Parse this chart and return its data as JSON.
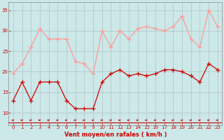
{
  "x": [
    0,
    1,
    2,
    3,
    4,
    5,
    6,
    7,
    8,
    9,
    10,
    11,
    12,
    13,
    14,
    15,
    16,
    17,
    18,
    19,
    20,
    21,
    22,
    23
  ],
  "wind_avg": [
    13,
    17.5,
    13,
    17.5,
    17.5,
    17.5,
    13,
    11,
    11,
    11,
    17.5,
    19.5,
    20.5,
    19,
    19.5,
    19,
    19.5,
    20.5,
    20.5,
    20,
    19,
    17.5,
    22,
    20.5
  ],
  "wind_gust": [
    19.5,
    22,
    26,
    30.5,
    28,
    28,
    28,
    22.5,
    22,
    19.5,
    30,
    26,
    30,
    28,
    30.5,
    31,
    30.5,
    30,
    31,
    33.5,
    28,
    26,
    35,
    31
  ],
  "bg_color": "#cce8e8",
  "avg_color": "#cc0000",
  "gust_color": "#ff9999",
  "xlabel": "Vent moyen/en rafales ( km/h )",
  "ylim": [
    7,
    37
  ],
  "yticks": [
    10,
    15,
    20,
    25,
    30,
    35
  ],
  "xticks": [
    0,
    1,
    2,
    3,
    4,
    5,
    6,
    7,
    8,
    9,
    10,
    11,
    12,
    13,
    14,
    15,
    16,
    17,
    18,
    19,
    20,
    21,
    22,
    23
  ]
}
